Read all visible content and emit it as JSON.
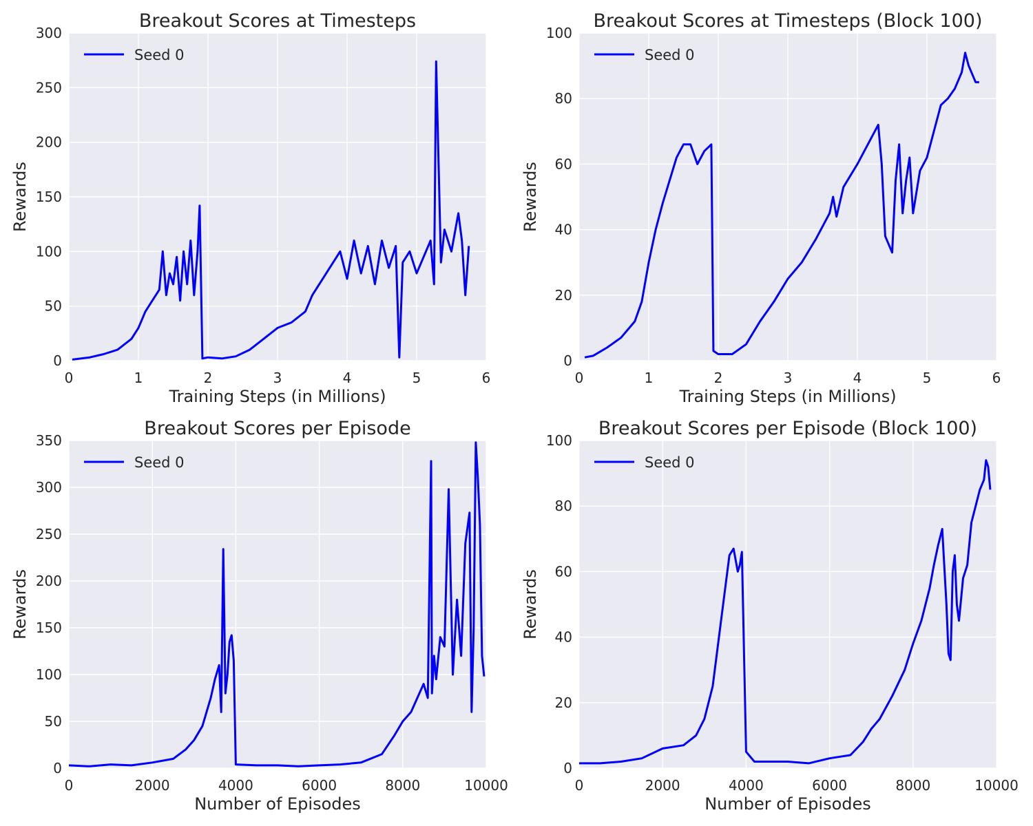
{
  "colors": {
    "axes_bg": "#eaeaf2",
    "grid": "#ffffff",
    "line": "#0000ff"
  },
  "chart_data": [
    {
      "type": "line",
      "title": "Breakout Scores at Timesteps",
      "xlabel": "Training Steps (in Millions)",
      "ylabel": "Rewards",
      "xlim": [
        0,
        6
      ],
      "ylim": [
        0,
        300
      ],
      "xticks": [
        "0",
        "1",
        "2",
        "3",
        "4",
        "5",
        "6"
      ],
      "yticks": [
        "0",
        "50",
        "100",
        "150",
        "200",
        "250",
        "300"
      ],
      "grid": true,
      "legend_position": "top-left",
      "series": [
        {
          "name": "Seed 0",
          "x": [
            0.05,
            0.3,
            0.5,
            0.7,
            0.8,
            0.9,
            1.0,
            1.1,
            1.2,
            1.3,
            1.35,
            1.4,
            1.45,
            1.5,
            1.55,
            1.6,
            1.65,
            1.7,
            1.75,
            1.8,
            1.85,
            1.88,
            1.92,
            2.0,
            2.2,
            2.4,
            2.6,
            2.8,
            3.0,
            3.2,
            3.4,
            3.5,
            3.6,
            3.7,
            3.8,
            3.9,
            4.0,
            4.1,
            4.2,
            4.3,
            4.4,
            4.5,
            4.6,
            4.7,
            4.75,
            4.8,
            4.9,
            5.0,
            5.1,
            5.2,
            5.25,
            5.28,
            5.35,
            5.4,
            5.5,
            5.6,
            5.65,
            5.7,
            5.75
          ],
          "y": [
            1,
            3,
            6,
            10,
            15,
            20,
            30,
            45,
            55,
            65,
            100,
            60,
            80,
            70,
            95,
            55,
            100,
            70,
            110,
            60,
            100,
            142,
            2,
            3,
            2,
            4,
            10,
            20,
            30,
            35,
            45,
            60,
            70,
            80,
            90,
            100,
            75,
            110,
            80,
            105,
            70,
            110,
            85,
            105,
            3,
            90,
            100,
            80,
            95,
            110,
            70,
            274,
            90,
            120,
            100,
            135,
            110,
            60,
            105
          ]
        }
      ]
    },
    {
      "type": "line",
      "title": "Breakout Scores at Timesteps (Block 100)",
      "xlabel": "Training Steps (in Millions)",
      "ylabel": "Rewards",
      "xlim": [
        0,
        6
      ],
      "ylim": [
        0,
        100
      ],
      "xticks": [
        "0",
        "1",
        "2",
        "3",
        "4",
        "5",
        "6"
      ],
      "yticks": [
        "0",
        "20",
        "40",
        "60",
        "80",
        "100"
      ],
      "grid": true,
      "legend_position": "top-left",
      "series": [
        {
          "name": "Seed 0",
          "x": [
            0.08,
            0.2,
            0.4,
            0.6,
            0.8,
            0.9,
            1.0,
            1.1,
            1.2,
            1.3,
            1.4,
            1.5,
            1.6,
            1.7,
            1.8,
            1.9,
            1.93,
            2.0,
            2.2,
            2.4,
            2.6,
            2.8,
            3.0,
            3.2,
            3.4,
            3.6,
            3.65,
            3.7,
            3.8,
            4.0,
            4.2,
            4.3,
            4.35,
            4.4,
            4.5,
            4.55,
            4.6,
            4.65,
            4.7,
            4.75,
            4.8,
            4.9,
            5.0,
            5.1,
            5.2,
            5.3,
            5.4,
            5.5,
            5.55,
            5.6,
            5.7,
            5.75
          ],
          "y": [
            1,
            1.5,
            4,
            7,
            12,
            18,
            30,
            40,
            48,
            55,
            62,
            66,
            66,
            60,
            64,
            66,
            3,
            2,
            2,
            5,
            12,
            18,
            25,
            30,
            37,
            45,
            50,
            44,
            53,
            60,
            68,
            72,
            60,
            38,
            33,
            55,
            66,
            45,
            55,
            62,
            45,
            58,
            62,
            70,
            78,
            80,
            83,
            88,
            94,
            90,
            85,
            85
          ]
        }
      ]
    },
    {
      "type": "line",
      "title": "Breakout Scores per Episode",
      "xlabel": "Number of Episodes",
      "ylabel": "Rewards",
      "xlim": [
        0,
        10000
      ],
      "ylim": [
        0,
        350
      ],
      "xticks": [
        "0",
        "2000",
        "4000",
        "6000",
        "8000",
        "10000"
      ],
      "yticks": [
        "0",
        "50",
        "100",
        "150",
        "200",
        "250",
        "300",
        "350"
      ],
      "grid": true,
      "legend_position": "top-left",
      "series": [
        {
          "name": "Seed 0",
          "x": [
            0,
            500,
            1000,
            1500,
            2000,
            2500,
            2800,
            3000,
            3200,
            3400,
            3500,
            3600,
            3650,
            3700,
            3750,
            3800,
            3850,
            3900,
            3950,
            4000,
            4500,
            5000,
            5500,
            6000,
            6500,
            7000,
            7500,
            7800,
            8000,
            8200,
            8400,
            8500,
            8600,
            8680,
            8700,
            8750,
            8800,
            8900,
            9000,
            9100,
            9200,
            9300,
            9400,
            9500,
            9600,
            9650,
            9700,
            9750,
            9800,
            9850,
            9900,
            9950
          ],
          "y": [
            3,
            2,
            4,
            3,
            6,
            10,
            20,
            30,
            45,
            75,
            95,
            110,
            60,
            234,
            80,
            100,
            135,
            142,
            115,
            4,
            3,
            3,
            2,
            3,
            4,
            6,
            15,
            35,
            50,
            60,
            80,
            90,
            75,
            328,
            80,
            120,
            95,
            140,
            130,
            298,
            100,
            180,
            120,
            240,
            273,
            60,
            150,
            348,
            310,
            260,
            120,
            98
          ]
        }
      ]
    },
    {
      "type": "line",
      "title": "Breakout Scores per Episode (Block 100)",
      "xlabel": "Number of Episodes",
      "ylabel": "Rewards",
      "xlim": [
        0,
        10000
      ],
      "ylim": [
        0,
        100
      ],
      "xticks": [
        "0",
        "2000",
        "4000",
        "6000",
        "8000",
        "10000"
      ],
      "yticks": [
        "0",
        "20",
        "40",
        "60",
        "80",
        "100"
      ],
      "grid": true,
      "legend_position": "top-left",
      "series": [
        {
          "name": "Seed 0",
          "x": [
            0,
            500,
            1000,
            1500,
            2000,
            2500,
            2800,
            3000,
            3200,
            3400,
            3500,
            3600,
            3700,
            3800,
            3850,
            3900,
            4000,
            4200,
            4600,
            5000,
            5500,
            6000,
            6500,
            6800,
            7000,
            7200,
            7500,
            7800,
            8000,
            8200,
            8400,
            8500,
            8600,
            8700,
            8800,
            8850,
            8900,
            8950,
            9000,
            9050,
            9100,
            9200,
            9300,
            9400,
            9500,
            9600,
            9700,
            9750,
            9800,
            9850
          ],
          "y": [
            1.5,
            1.5,
            2,
            3,
            6,
            7,
            10,
            15,
            25,
            45,
            55,
            65,
            67,
            60,
            62,
            66,
            5,
            2,
            2,
            2,
            1.5,
            3,
            4,
            8,
            12,
            15,
            22,
            30,
            38,
            45,
            55,
            62,
            68,
            73,
            50,
            35,
            33,
            60,
            65,
            50,
            45,
            58,
            62,
            75,
            80,
            85,
            88,
            94,
            92,
            85
          ]
        }
      ]
    }
  ]
}
